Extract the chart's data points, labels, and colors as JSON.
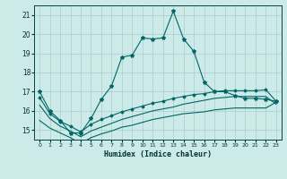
{
  "title": "",
  "xlabel": "Humidex (Indice chaleur)",
  "background_color": "#cceae8",
  "grid_color": "#aaccca",
  "line_color": "#006666",
  "xlim": [
    -0.5,
    23.5
  ],
  "ylim": [
    14.5,
    21.5
  ],
  "yticks": [
    15,
    16,
    17,
    18,
    19,
    20,
    21
  ],
  "xticks": [
    0,
    1,
    2,
    3,
    4,
    5,
    6,
    7,
    8,
    9,
    10,
    11,
    12,
    13,
    14,
    15,
    16,
    17,
    18,
    19,
    20,
    21,
    22,
    23
  ],
  "main_line_x": [
    0,
    1,
    2,
    3,
    4,
    5,
    6,
    7,
    8,
    9,
    10,
    11,
    12,
    13,
    14,
    15,
    16,
    17,
    18,
    19,
    20,
    21,
    22,
    23
  ],
  "main_line_y": [
    17.0,
    16.0,
    15.5,
    14.85,
    14.85,
    15.6,
    16.6,
    17.3,
    18.8,
    18.9,
    19.8,
    19.75,
    19.8,
    21.2,
    19.75,
    19.1,
    17.5,
    17.0,
    17.0,
    16.8,
    16.65,
    16.65,
    16.6,
    16.5
  ],
  "line2_x": [
    0,
    1,
    2,
    3,
    4,
    5,
    6,
    7,
    8,
    9,
    10,
    11,
    12,
    13,
    14,
    15,
    16,
    17,
    18,
    19,
    20,
    21,
    22,
    23
  ],
  "line2_y": [
    16.7,
    15.85,
    15.45,
    15.2,
    14.9,
    15.3,
    15.55,
    15.75,
    15.95,
    16.1,
    16.25,
    16.4,
    16.5,
    16.65,
    16.75,
    16.85,
    16.9,
    17.0,
    17.05,
    17.05,
    17.05,
    17.05,
    17.1,
    16.5
  ],
  "line3_x": [
    0,
    1,
    2,
    3,
    4,
    5,
    6,
    7,
    8,
    9,
    10,
    11,
    12,
    13,
    14,
    15,
    16,
    17,
    18,
    19,
    20,
    21,
    22,
    23
  ],
  "line3_y": [
    16.3,
    15.6,
    15.2,
    14.95,
    14.65,
    14.95,
    15.15,
    15.35,
    15.55,
    15.7,
    15.85,
    16.0,
    16.1,
    16.2,
    16.35,
    16.45,
    16.55,
    16.65,
    16.7,
    16.75,
    16.75,
    16.75,
    16.75,
    16.35
  ],
  "line4_x": [
    0,
    1,
    2,
    3,
    4,
    5,
    6,
    7,
    8,
    9,
    10,
    11,
    12,
    13,
    14,
    15,
    16,
    17,
    18,
    19,
    20,
    21,
    22,
    23
  ],
  "line4_y": [
    15.5,
    15.1,
    14.85,
    14.6,
    14.3,
    14.6,
    14.8,
    14.95,
    15.15,
    15.25,
    15.4,
    15.55,
    15.65,
    15.75,
    15.85,
    15.9,
    15.95,
    16.05,
    16.1,
    16.15,
    16.15,
    16.15,
    16.15,
    16.45
  ]
}
